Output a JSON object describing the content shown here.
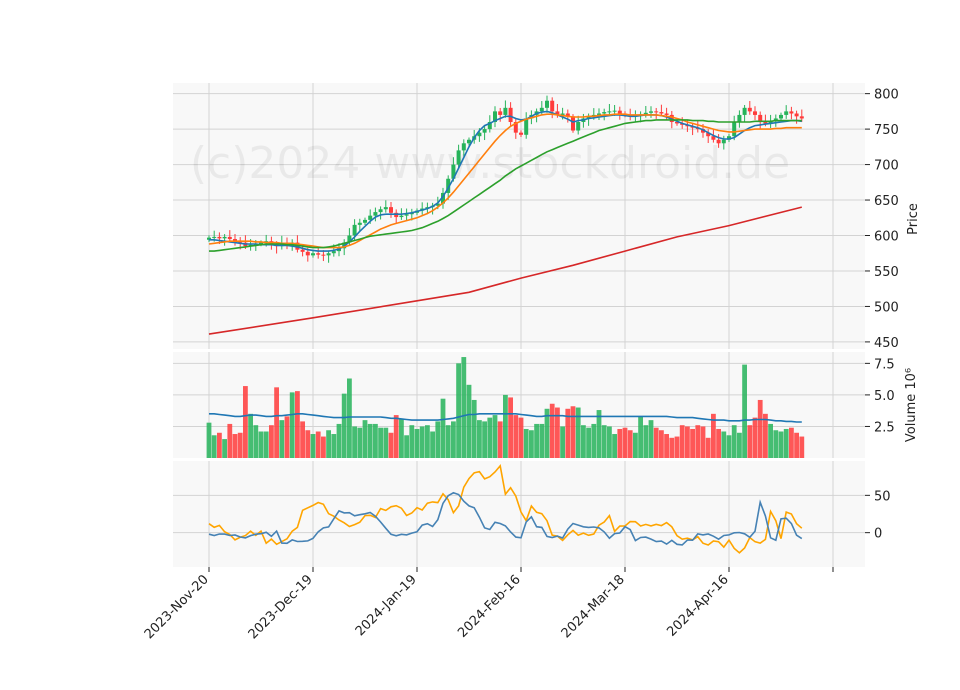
{
  "chart_data": {
    "type": "candlestick",
    "watermark": "(c)2024 www.stockdroid.de",
    "x_tick_labels": [
      "2023-Nov-20",
      "2023-Dec-19",
      "2024-Jan-19",
      "2024-Feb-16",
      "2024-Mar-18",
      "2024-Apr-16"
    ],
    "x_tick_index": [
      0,
      20,
      40,
      60,
      80,
      100
    ],
    "colors": {
      "up": "#26b35a",
      "down": "#ff3b3b",
      "ma_short": "#1f77b4",
      "ma_mid": "#ff7f0e",
      "ma_long": "#2ca02c",
      "ma_200": "#d62728",
      "vol_ma": "#1f77b4",
      "osc_fast": "#4682b4",
      "osc_slow": "#ffa500",
      "panel_bg": "#f8f8f8",
      "grid": "#d3d3d3"
    },
    "price_panel": {
      "ylabel": "Price",
      "ylim": [
        440,
        815
      ],
      "yticks": [
        450,
        500,
        550,
        600,
        650,
        700,
        750,
        800
      ],
      "close": [
        597,
        598,
        596,
        598,
        595,
        593,
        590,
        585,
        587,
        588,
        590,
        592,
        588,
        585,
        590,
        588,
        590,
        580,
        577,
        572,
        575,
        573,
        572,
        575,
        578,
        582,
        590,
        600,
        615,
        618,
        622,
        628,
        633,
        637,
        640,
        632,
        626,
        628,
        630,
        632,
        635,
        638,
        640,
        642,
        645,
        660,
        680,
        700,
        720,
        730,
        735,
        740,
        745,
        750,
        760,
        775,
        770,
        780,
        760,
        745,
        742,
        765,
        770,
        775,
        780,
        790,
        775,
        770,
        772,
        768,
        748,
        760,
        765,
        768,
        770,
        772,
        774,
        775,
        776,
        772,
        770,
        768,
        770,
        771,
        773,
        775,
        774,
        772,
        770,
        760,
        758,
        756,
        754,
        752,
        750,
        745,
        740,
        735,
        730,
        735,
        740,
        760,
        770,
        780,
        775,
        770,
        760,
        758,
        762,
        765,
        770,
        775,
        772,
        768,
        765
      ],
      "high_offset": 8,
      "low_offset": 8,
      "ma_short": [
        594,
        594,
        593,
        592,
        591,
        590,
        589,
        588,
        588,
        588,
        587,
        587,
        587,
        586,
        586,
        586,
        585,
        584,
        582,
        580,
        579,
        578,
        578,
        578,
        579,
        581,
        585,
        591,
        598,
        606,
        613,
        620,
        626,
        629,
        630,
        630,
        630,
        630,
        631,
        632,
        634,
        636,
        638,
        641,
        646,
        655,
        667,
        680,
        695,
        710,
        725,
        738,
        748,
        755,
        758,
        762,
        765,
        768,
        768,
        765,
        763,
        764,
        768,
        772,
        774,
        775,
        773,
        770,
        767,
        764,
        760,
        762,
        763,
        765,
        766,
        767,
        768,
        769,
        770,
        770,
        769,
        768,
        768,
        769,
        770,
        770,
        770,
        769,
        767,
        764,
        761,
        758,
        756,
        754,
        752,
        749,
        745,
        741,
        738,
        736,
        736,
        738,
        743,
        748,
        752,
        755,
        756,
        757,
        758,
        759,
        760,
        761,
        762,
        762,
        761
      ],
      "ma_mid": [
        588,
        589,
        590,
        591,
        592,
        592,
        592,
        592,
        592,
        591,
        591,
        590,
        590,
        590,
        589,
        589,
        589,
        588,
        587,
        586,
        585,
        584,
        583,
        583,
        583,
        583,
        584,
        586,
        589,
        593,
        597,
        601,
        605,
        609,
        612,
        615,
        617,
        619,
        621,
        623,
        625,
        628,
        631,
        635,
        640,
        646,
        653,
        661,
        670,
        679,
        688,
        697,
        706,
        715,
        724,
        733,
        741,
        748,
        754,
        758,
        761,
        764,
        766,
        768,
        770,
        771,
        771,
        770,
        769,
        768,
        767,
        767,
        767,
        768,
        768,
        769,
        770,
        770,
        771,
        771,
        771,
        770,
        770,
        770,
        770,
        770,
        770,
        769,
        768,
        767,
        765,
        763,
        760,
        758,
        756,
        754,
        752,
        750,
        748,
        747,
        746,
        746,
        747,
        748,
        749,
        750,
        750,
        750,
        750,
        751,
        751,
        752,
        752,
        752,
        752
      ],
      "ma_long": [
        578,
        578,
        579,
        580,
        581,
        582,
        583,
        584,
        585,
        586,
        587,
        588,
        588,
        588,
        588,
        587,
        587,
        586,
        585,
        584,
        583,
        583,
        583,
        584,
        585,
        587,
        589,
        591,
        593,
        595,
        597,
        599,
        600,
        601,
        602,
        603,
        604,
        605,
        606,
        607,
        609,
        611,
        614,
        617,
        620,
        624,
        628,
        633,
        638,
        643,
        648,
        653,
        658,
        663,
        668,
        673,
        678,
        684,
        689,
        694,
        698,
        702,
        706,
        710,
        714,
        718,
        721,
        724,
        727,
        730,
        733,
        736,
        739,
        742,
        745,
        748,
        750,
        752,
        754,
        756,
        758,
        759,
        760,
        761,
        762,
        762,
        763,
        763,
        763,
        763,
        763,
        763,
        763,
        762,
        762,
        762,
        761,
        761,
        760,
        760,
        760,
        760,
        760,
        760,
        760,
        761,
        761,
        761,
        761,
        762,
        762,
        762,
        762,
        762,
        762
      ],
      "ma_200": [
        {
          "i": 0,
          "v": 461
        },
        {
          "i": 20,
          "v": 484
        },
        {
          "i": 40,
          "v": 508
        },
        {
          "i": 50,
          "v": 520
        },
        {
          "i": 60,
          "v": 540
        },
        {
          "i": 70,
          "v": 558
        },
        {
          "i": 80,
          "v": 578
        },
        {
          "i": 90,
          "v": 598
        },
        {
          "i": 100,
          "v": 614
        },
        {
          "i": 114,
          "v": 640
        }
      ]
    },
    "volume_panel": {
      "ylabel": "Volume  10⁶",
      "ylim": [
        0,
        8.4
      ],
      "yticks": [
        2.5,
        5.0,
        7.5
      ],
      "values": [
        2.8,
        1.8,
        2.0,
        1.5,
        2.7,
        1.9,
        2.0,
        5.7,
        3.5,
        2.6,
        2.1,
        2.1,
        2.6,
        5.6,
        3.0,
        3.3,
        5.2,
        5.3,
        2.9,
        2.2,
        1.9,
        2.1,
        1.7,
        2.2,
        1.9,
        2.7,
        5.1,
        6.3,
        2.5,
        2.4,
        3.0,
        2.7,
        2.7,
        2.4,
        2.4,
        2.0,
        3.4,
        3.1,
        1.8,
        2.6,
        2.3,
        2.5,
        2.6,
        2.1,
        2.9,
        4.7,
        2.6,
        2.9,
        7.5,
        8.0,
        5.8,
        4.6,
        3.0,
        2.9,
        3.2,
        3.4,
        2.9,
        5.0,
        4.8,
        3.4,
        3.2,
        2.3,
        2.2,
        2.7,
        2.7,
        3.9,
        4.3,
        4.0,
        2.5,
        3.9,
        4.1,
        4.0,
        2.6,
        2.4,
        2.7,
        3.8,
        2.6,
        2.5,
        1.9,
        2.3,
        2.4,
        2.2,
        2.0,
        3.3,
        2.6,
        3.0,
        2.4,
        2.2,
        1.9,
        1.6,
        1.7,
        2.6,
        2.5,
        2.3,
        2.6,
        2.5,
        1.6,
        3.5,
        2.3,
        2.1,
        1.8,
        2.6,
        2.0,
        7.4,
        2.6,
        3.2,
        4.6,
        3.5,
        2.7,
        2.2,
        2.1,
        2.3,
        2.4,
        2.0,
        1.7
      ],
      "ma": [
        3.5,
        3.5,
        3.45,
        3.4,
        3.35,
        3.3,
        3.3,
        3.35,
        3.4,
        3.4,
        3.35,
        3.3,
        3.3,
        3.35,
        3.35,
        3.4,
        3.45,
        3.5,
        3.5,
        3.45,
        3.4,
        3.35,
        3.3,
        3.25,
        3.2,
        3.2,
        3.2,
        3.25,
        3.25,
        3.25,
        3.25,
        3.25,
        3.25,
        3.25,
        3.2,
        3.15,
        3.15,
        3.1,
        3.05,
        3.0,
        3.0,
        3.0,
        3.0,
        3.0,
        3.0,
        3.05,
        3.1,
        3.15,
        3.25,
        3.35,
        3.45,
        3.45,
        3.5,
        3.5,
        3.5,
        3.5,
        3.5,
        3.5,
        3.5,
        3.5,
        3.45,
        3.4,
        3.35,
        3.3,
        3.3,
        3.35,
        3.35,
        3.35,
        3.35,
        3.3,
        3.3,
        3.3,
        3.3,
        3.3,
        3.3,
        3.3,
        3.3,
        3.3,
        3.3,
        3.3,
        3.3,
        3.3,
        3.3,
        3.3,
        3.3,
        3.3,
        3.3,
        3.3,
        3.3,
        3.25,
        3.2,
        3.2,
        3.2,
        3.2,
        3.15,
        3.1,
        3.05,
        3.0,
        3.0,
        3.0,
        2.95,
        2.95,
        2.95,
        3.0,
        3.0,
        3.05,
        3.05,
        3.05,
        3.0,
        2.95,
        2.95,
        2.9,
        2.9,
        2.85,
        2.85
      ]
    },
    "oscillator_panel": {
      "ylim": [
        -46,
        96
      ],
      "yticks": [
        0,
        50
      ],
      "fast": [
        -2,
        -4,
        -3,
        0,
        -3,
        -4,
        -3,
        -5,
        -8,
        -6,
        -3,
        -2,
        -2,
        4,
        -7,
        -3,
        4,
        -15,
        -15,
        -10,
        -9,
        -14,
        -11,
        -11,
        -9,
        -3,
        7,
        6,
        8,
        18,
        30,
        27,
        26,
        27,
        22,
        24,
        25,
        26,
        28,
        20,
        14,
        7,
        0,
        -6,
        -3,
        -2,
        -3,
        0,
        -3,
        7,
        12,
        12,
        8,
        14,
        27,
        53,
        48,
        54,
        52,
        44,
        38,
        34,
        33,
        20,
        8,
        -2,
        15,
        13,
        12,
        9,
        2,
        -3,
        -10,
        -5,
        18,
        22,
        8,
        8,
        6,
        -10,
        -6,
        -4,
        -10,
        -1,
        10,
        13,
        10,
        8,
        7,
        7,
        8,
        6,
        1,
        -8,
        -5,
        4,
        -3,
        10,
        5,
        -12,
        -7,
        -6,
        -6,
        -9,
        -12,
        -12,
        -10,
        -20,
        -7,
        -16,
        -18,
        -8,
        -13,
        -8,
        0,
        -3,
        -2,
        -1,
        -10,
        -8,
        -3,
        -3,
        -2,
        5,
        -5,
        0,
        -7,
        -3,
        43,
        36,
        10,
        -13,
        -10,
        18,
        22,
        15,
        10,
        -7,
        -8
      ],
      "slow": [
        12,
        6,
        8,
        12,
        3,
        1,
        -2,
        -3,
        -10,
        -7,
        -6,
        -4,
        -4,
        2,
        -3,
        -4,
        7,
        -15,
        -14,
        -10,
        -7,
        -16,
        -12,
        -12,
        -12,
        -1,
        2,
        3,
        10,
        30,
        30,
        34,
        37,
        36,
        40,
        45,
        35,
        27,
        22,
        22,
        17,
        17,
        13,
        14,
        7,
        6,
        17,
        14,
        14,
        27,
        23,
        24,
        20,
        30,
        34,
        30,
        29,
        36,
        37,
        35,
        33,
        27,
        21,
        26,
        27,
        34,
        33,
        28,
        39,
        42,
        41,
        39,
        42,
        52,
        48,
        42,
        30,
        18,
        38,
        62,
        60,
        71,
        81,
        80,
        83,
        80,
        72,
        75,
        75,
        82,
        79,
        91,
        57,
        46,
        61,
        55,
        47,
        31,
        22,
        16,
        32,
        38,
        27,
        28,
        25,
        16,
        16,
        -4,
        2,
        -7,
        -16,
        0,
        -3,
        0,
        5,
        -5,
        2,
        -1,
        -4,
        -3,
        -2,
        0,
        14,
        12,
        19,
        23,
        4,
        0,
        10,
        4,
        10,
        13,
        17,
        15,
        11,
        8,
        12,
        9,
        9,
        9,
        13,
        10,
        7,
        15,
        10,
        5,
        -4,
        -6,
        -10,
        -8,
        -6,
        -10,
        -6,
        -5,
        -14,
        -15,
        -17,
        -14,
        -7,
        -12,
        -16,
        -21,
        -13,
        -2,
        -23,
        -28,
        -26,
        -22,
        -12,
        -5,
        -7,
        -20,
        -14,
        -11,
        -8,
        30,
        24,
        15,
        -12,
        -4,
        27,
        31,
        23,
        15,
        7,
        6
      ]
    }
  }
}
